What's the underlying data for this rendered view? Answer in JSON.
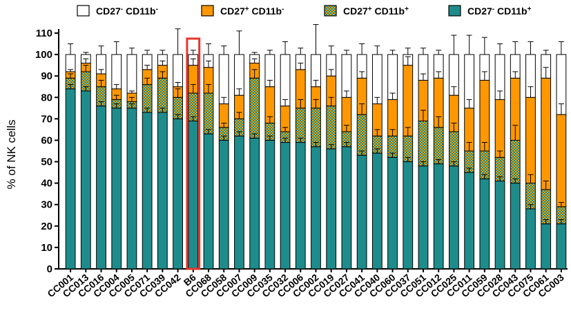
{
  "chart_data": {
    "type": "bar",
    "stacked": true,
    "ylabel": "% of NK cells",
    "xlabel": "",
    "ylim": [
      0,
      110
    ],
    "yticks": [
      0,
      10,
      20,
      30,
      40,
      50,
      60,
      70,
      80,
      90,
      100,
      110
    ],
    "grid": false,
    "legend_position": "top",
    "highlight_category": "B6",
    "highlight_color": "#e8342a",
    "categories": [
      "CC001",
      "CC013",
      "CC016",
      "CC004",
      "CC005",
      "CC071",
      "CC039",
      "CC042",
      "B6",
      "CC068",
      "CC058",
      "CC007",
      "CC009",
      "CC035",
      "CC032",
      "CC006",
      "CC002",
      "CC019",
      "CC027",
      "CC041",
      "CC040",
      "CC060",
      "CC037",
      "CC051",
      "CC012",
      "CC025",
      "CC011",
      "CC059",
      "CC028",
      "CC043",
      "CC075",
      "CC061",
      "CC003"
    ],
    "series": [
      {
        "name": "CD27- CD11b+",
        "legend_main": "CD27",
        "legend_sup1": "-",
        "legend_mid": " CD11b",
        "legend_sup2": "+",
        "color": "#1f8c8c",
        "pattern": "solid",
        "values": [
          84,
          83,
          76,
          75,
          75,
          73,
          73,
          70,
          69,
          63,
          60,
          62,
          61,
          60,
          59,
          59,
          57,
          56,
          57,
          53,
          54,
          52,
          50,
          48,
          49,
          48,
          45,
          42,
          41,
          40,
          28,
          21,
          21
        ],
        "errors": [
          2,
          2,
          2,
          2,
          2,
          2,
          2,
          2,
          2,
          2,
          2,
          2,
          2,
          2,
          2,
          2,
          2,
          2,
          2,
          2,
          2,
          2,
          2,
          2,
          2,
          2,
          2,
          2,
          2,
          2,
          2,
          2,
          2
        ]
      },
      {
        "name": "CD27+ CD11b+",
        "legend_main": "CD27",
        "legend_sup1": "+",
        "legend_mid": " CD11b",
        "legend_sup2": "+",
        "color": "#8a7a3a",
        "pattern": "checker",
        "values": [
          5,
          9,
          9,
          4,
          3,
          13,
          16,
          10,
          13,
          19,
          6,
          8,
          28,
          8,
          5,
          16,
          18,
          20,
          7,
          19,
          8,
          10,
          12,
          21,
          17,
          16,
          10,
          13,
          11,
          20,
          12,
          16,
          8
        ],
        "errors": [
          2,
          3,
          3,
          2,
          2,
          3,
          3,
          4,
          4,
          4,
          2,
          3,
          4,
          3,
          2,
          4,
          4,
          4,
          3,
          5,
          3,
          3,
          4,
          5,
          5,
          4,
          4,
          4,
          3,
          7,
          4,
          4,
          2
        ]
      },
      {
        "name": "CD27+ CD11b-",
        "legend_main": "CD27",
        "legend_sup1": "+",
        "legend_mid": " CD11b",
        "legend_sup2": "-",
        "color": "#ff9800",
        "pattern": "solid",
        "values": [
          3,
          4,
          6,
          5,
          4,
          7,
          6,
          5,
          13,
          12,
          11,
          11,
          7,
          17,
          12,
          18,
          10,
          14,
          16,
          17,
          15,
          17,
          33,
          19,
          23,
          17,
          20,
          33,
          27,
          29,
          40,
          52,
          43
        ],
        "errors": [
          1,
          2,
          2,
          2,
          1,
          2,
          2,
          2,
          3,
          3,
          3,
          3,
          2,
          3,
          3,
          3,
          3,
          3,
          3,
          3,
          3,
          3,
          4,
          3,
          3,
          4,
          4,
          4,
          4,
          3,
          5,
          5,
          5
        ]
      },
      {
        "name": "CD27- CD11b-",
        "legend_main": "CD27",
        "legend_sup1": "-",
        "legend_mid": " CD11b",
        "legend_sup2": "-",
        "color": "#ffffff",
        "pattern": "solid",
        "values": [
          8,
          4,
          9,
          16,
          18,
          7,
          5,
          15,
          5,
          6,
          23,
          19,
          4,
          15,
          24,
          7,
          15,
          10,
          20,
          11,
          23,
          21,
          5,
          12,
          11,
          19,
          25,
          12,
          21,
          11,
          20,
          11,
          28
        ],
        "errors": [
          5,
          1,
          4,
          6,
          3,
          2,
          2,
          12,
          2,
          5,
          4,
          11,
          1,
          2,
          6,
          3,
          14,
          4,
          2,
          5,
          4,
          2,
          3,
          3,
          2,
          9,
          9,
          8,
          5,
          6,
          6,
          2,
          6
        ]
      }
    ]
  }
}
